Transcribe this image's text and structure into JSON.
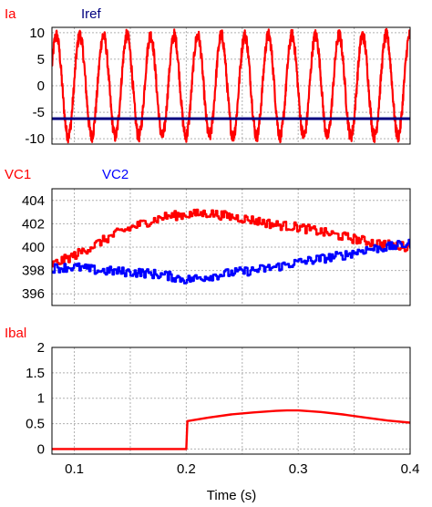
{
  "chart_data": [
    {
      "type": "line",
      "xlim": [
        0.08,
        0.4
      ],
      "ylim": [
        -11,
        11
      ],
      "yticks": [
        "10",
        "5",
        "0",
        "-5",
        "-10"
      ],
      "ytick_values": [
        10,
        5,
        0,
        -5,
        -10
      ],
      "grid": true,
      "series": [
        {
          "name": "Ia",
          "color": "#ff0000",
          "description": "sinusoid, amplitude ~9.5, about 15 cycles over 0.08-0.4 s, with high-frequency switching ripple",
          "amplitude": 9.5,
          "cycles_in_window": 15.2,
          "ripple": 1.2
        },
        {
          "name": "Iref",
          "color": "#000080",
          "x": [
            0.08,
            0.4
          ],
          "y": [
            -6.2,
            -6.2
          ]
        }
      ]
    },
    {
      "type": "line",
      "xlim": [
        0.08,
        0.4
      ],
      "ylim": [
        395,
        405
      ],
      "yticks": [
        "404",
        "402",
        "400",
        "398",
        "396"
      ],
      "ytick_values": [
        404,
        402,
        400,
        398,
        396
      ],
      "grid": true,
      "series": [
        {
          "name": "VC1",
          "color": "#ff0000",
          "x": [
            0.08,
            0.1,
            0.12,
            0.14,
            0.16,
            0.18,
            0.2,
            0.22,
            0.24,
            0.26,
            0.28,
            0.3,
            0.32,
            0.34,
            0.36,
            0.38,
            0.4
          ],
          "y": [
            398.5,
            399.3,
            400.3,
            401.3,
            402.0,
            402.6,
            402.8,
            402.9,
            402.6,
            402.3,
            401.9,
            401.7,
            401.3,
            400.9,
            400.5,
            400.2,
            400.0
          ]
        },
        {
          "name": "VC2",
          "color": "#0000ff",
          "x": [
            0.08,
            0.1,
            0.12,
            0.14,
            0.16,
            0.18,
            0.2,
            0.22,
            0.24,
            0.26,
            0.28,
            0.3,
            0.32,
            0.34,
            0.36,
            0.38,
            0.4
          ],
          "y": [
            398.2,
            398.3,
            398.0,
            397.9,
            397.8,
            397.6,
            397.2,
            397.5,
            397.8,
            398.0,
            398.3,
            398.7,
            399.0,
            399.3,
            399.8,
            400.0,
            400.3
          ]
        }
      ]
    },
    {
      "type": "line",
      "xlim": [
        0.08,
        0.4
      ],
      "ylim": [
        -0.1,
        2
      ],
      "yticks": [
        "2",
        "1.5",
        "1",
        "0.5",
        "0"
      ],
      "ytick_values": [
        2,
        1.5,
        1,
        0.5,
        0
      ],
      "xticks": [
        "0.1",
        "0.2",
        "0.3",
        "0.4"
      ],
      "xtick_values": [
        0.1,
        0.2,
        0.3,
        0.4
      ],
      "xlabel": "Time (s)",
      "grid": true,
      "series": [
        {
          "name": "Ibal",
          "color": "#ff0000",
          "x": [
            0.08,
            0.199,
            0.2,
            0.201,
            0.22,
            0.24,
            0.26,
            0.28,
            0.29,
            0.3,
            0.32,
            0.34,
            0.36,
            0.38,
            0.4
          ],
          "y": [
            0.0,
            0.0,
            0.0,
            0.55,
            0.62,
            0.68,
            0.72,
            0.75,
            0.76,
            0.76,
            0.73,
            0.68,
            0.62,
            0.56,
            0.52
          ]
        }
      ]
    }
  ]
}
